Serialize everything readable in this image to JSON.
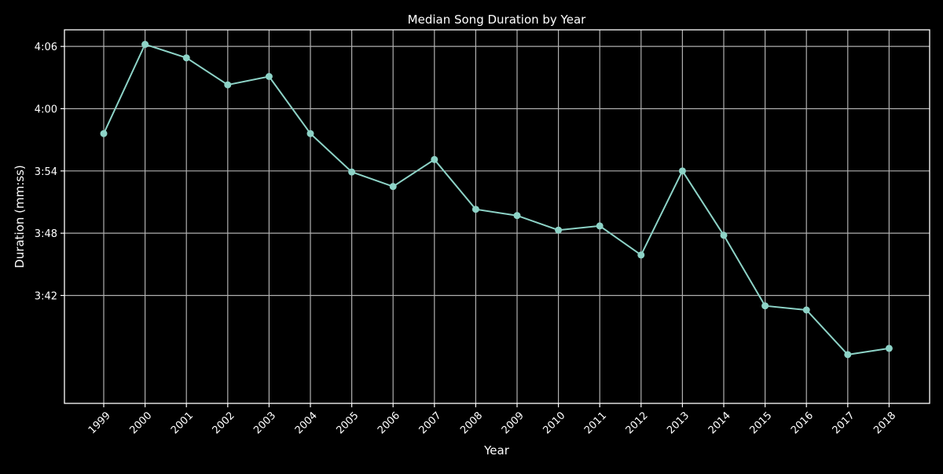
{
  "chart_data": {
    "type": "line",
    "title": "Median Song Duration by Year",
    "xlabel": "Year",
    "ylabel": "Duration (mm:ss)",
    "x": [
      "1999",
      "2000",
      "2001",
      "2002",
      "2003",
      "2004",
      "2005",
      "2006",
      "2007",
      "2008",
      "2009",
      "2010",
      "2011",
      "2012",
      "2013",
      "2014",
      "2015",
      "2016",
      "2017",
      "2018"
    ],
    "series": [
      {
        "values": [
          237.6,
          246.2,
          244.9,
          242.3,
          243.1,
          237.6,
          233.9,
          232.5,
          235.1,
          230.3,
          229.7,
          228.3,
          228.7,
          225.9,
          234.0,
          227.8,
          221.0,
          220.6,
          216.3,
          216.9
        ]
      }
    ],
    "yticks": [
      222,
      228,
      234,
      240,
      246
    ],
    "ytick_labels": [
      "3:42",
      "3:48",
      "3:54",
      "4:00",
      "4:06"
    ],
    "ylim": [
      211.6,
      247.6
    ],
    "grid": true,
    "colors": {
      "background": "#000000",
      "line": "#8dd3c7",
      "grid": "#b0b0b0",
      "axis": "#ffffff",
      "text": "#ffffff"
    }
  }
}
